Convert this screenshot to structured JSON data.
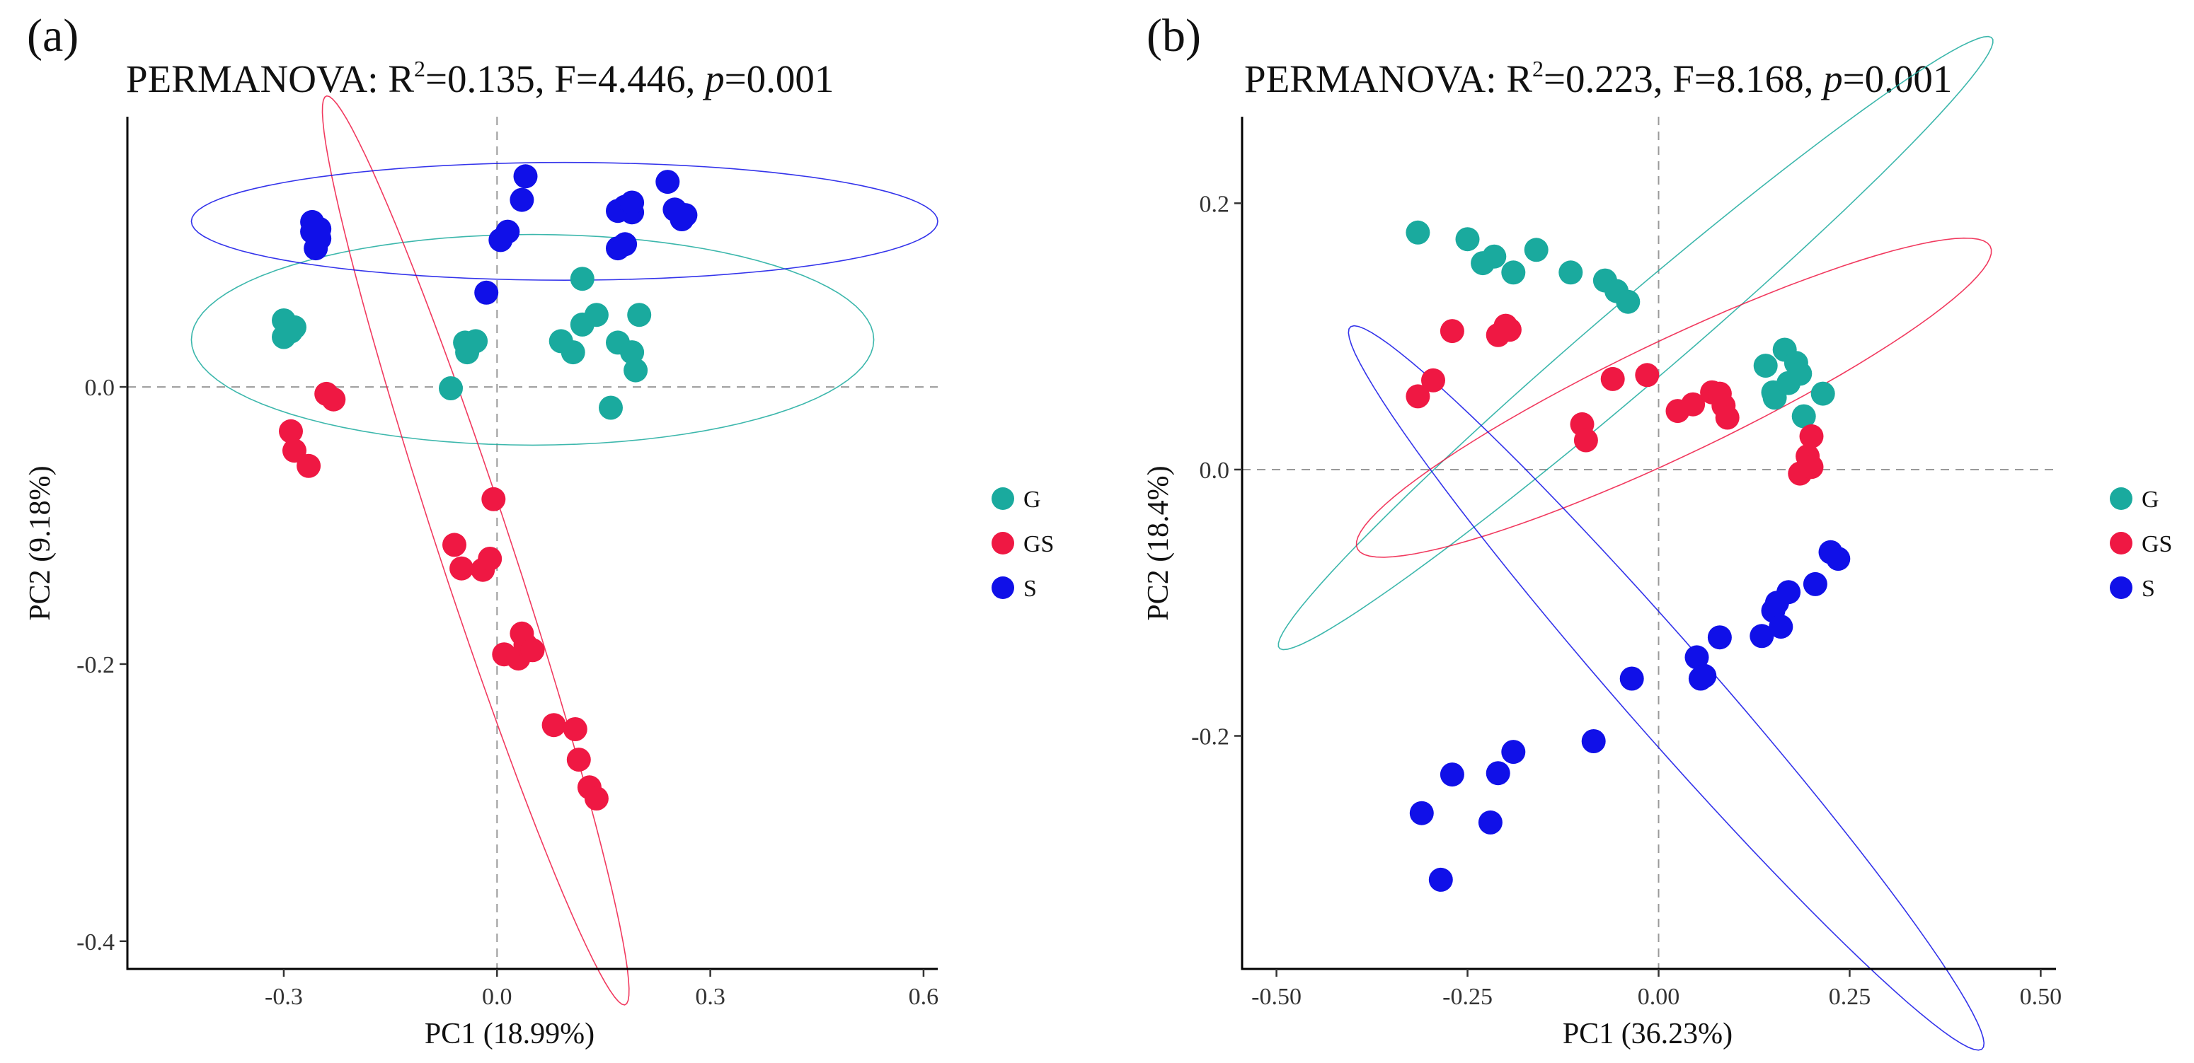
{
  "chart_data": [
    {
      "type": "scatter",
      "panel": "(a)",
      "title": {
        "prefix": "PERMANOVA: ",
        "r_label": "R",
        "r_sup": "2",
        "r_value": "=0.135, F=4.446, ",
        "p_label": "p",
        "p_value": "=0.001"
      },
      "xlabel": "PC1 (18.99%)",
      "ylabel": "PC2 (9.18%)",
      "xlim": [
        -0.52,
        0.62
      ],
      "ylim": [
        -0.42,
        0.195
      ],
      "xticks": [
        -0.3,
        0.0,
        0.3,
        0.6
      ],
      "xtick_labels": [
        "-0.3",
        "0.0",
        "0.3",
        "0.6"
      ],
      "yticks": [
        -0.4,
        -0.2,
        0.0
      ],
      "ytick_labels": [
        "-0.4",
        "-0.2",
        "0.0"
      ],
      "legend": [
        {
          "label": "G",
          "color": "#1aaa9e"
        },
        {
          "label": "GS",
          "color": "#ef1843"
        },
        {
          "label": "S",
          "color": "#1010e8"
        }
      ],
      "series": [
        {
          "name": "G",
          "color": "#1aaa9e",
          "points": [
            [
              -0.3,
              0.048
            ],
            [
              -0.3,
              0.036
            ],
            [
              -0.29,
              0.04
            ],
            [
              -0.285,
              0.043
            ],
            [
              -0.065,
              -0.001
            ],
            [
              -0.045,
              0.032
            ],
            [
              -0.042,
              0.025
            ],
            [
              -0.04,
              0.031
            ],
            [
              -0.03,
              0.033
            ],
            [
              0.09,
              0.033
            ],
            [
              0.107,
              0.025
            ],
            [
              0.12,
              0.078
            ],
            [
              0.12,
              0.045
            ],
            [
              0.14,
              0.052
            ],
            [
              0.16,
              -0.015
            ],
            [
              0.17,
              0.032
            ],
            [
              0.19,
              0.025
            ],
            [
              0.195,
              0.012
            ],
            [
              0.2,
              0.052
            ]
          ],
          "ellipse": {
            "cx": 0.05,
            "cy": 0.034,
            "rx": 0.48,
            "ry": 0.076,
            "angle_deg": 0
          }
        },
        {
          "name": "GS",
          "color": "#ef1843",
          "points": [
            [
              -0.24,
              -0.005
            ],
            [
              -0.23,
              -0.009
            ],
            [
              -0.29,
              -0.032
            ],
            [
              -0.285,
              -0.046
            ],
            [
              -0.265,
              -0.057
            ],
            [
              -0.005,
              -0.081
            ],
            [
              -0.06,
              -0.114
            ],
            [
              -0.05,
              -0.131
            ],
            [
              -0.02,
              -0.132
            ],
            [
              -0.01,
              -0.124
            ],
            [
              0.01,
              -0.193
            ],
            [
              0.03,
              -0.196
            ],
            [
              0.04,
              -0.186
            ],
            [
              0.035,
              -0.178
            ],
            [
              0.05,
              -0.19
            ],
            [
              0.08,
              -0.244
            ],
            [
              0.11,
              -0.247
            ],
            [
              0.115,
              -0.269
            ],
            [
              0.13,
              -0.289
            ],
            [
              0.14,
              -0.297
            ]
          ],
          "ellipse": {
            "cx": -0.03,
            "cy": -0.118,
            "rx": 0.39,
            "ry": 0.045,
            "angle_deg": -57
          }
        },
        {
          "name": "S",
          "color": "#1010e8",
          "points": [
            [
              -0.26,
              0.119
            ],
            [
              -0.26,
              0.112
            ],
            [
              -0.25,
              0.114
            ],
            [
              -0.255,
              0.1
            ],
            [
              -0.25,
              0.107
            ],
            [
              -0.015,
              0.068
            ],
            [
              0.005,
              0.106
            ],
            [
              0.015,
              0.112
            ],
            [
              0.035,
              0.135
            ],
            [
              0.04,
              0.152
            ],
            [
              0.17,
              0.1
            ],
            [
              0.18,
              0.103
            ],
            [
              0.17,
              0.127
            ],
            [
              0.18,
              0.13
            ],
            [
              0.19,
              0.126
            ],
            [
              0.19,
              0.133
            ],
            [
              0.24,
              0.148
            ],
            [
              0.25,
              0.128
            ],
            [
              0.26,
              0.121
            ],
            [
              0.265,
              0.124
            ]
          ],
          "ellipse": {
            "cx": 0.095,
            "cy": 0.1195,
            "rx": 0.525,
            "ry": 0.0425,
            "angle_deg": 0
          }
        }
      ]
    },
    {
      "type": "scatter",
      "panel": "(b)",
      "title": {
        "prefix": "PERMANOVA: ",
        "r_label": "R",
        "r_sup": "2",
        "r_value": "=0.223, F=8.168, ",
        "p_label": "p",
        "p_value": "=0.001"
      },
      "xlabel": "PC1 (36.23%)",
      "ylabel": "PC2 (18.4%)",
      "xlim": [
        -0.545,
        0.52
      ],
      "ylim": [
        -0.375,
        0.265
      ],
      "xticks": [
        -0.5,
        -0.25,
        0.0,
        0.25,
        0.5
      ],
      "xtick_labels": [
        "-0.50",
        "-0.25",
        "0.00",
        "0.25",
        "0.50"
      ],
      "yticks": [
        -0.2,
        0.0,
        0.2
      ],
      "ytick_labels": [
        "-0.2",
        "0.0",
        "0.2"
      ],
      "legend": [
        {
          "label": "G",
          "color": "#1aaa9e"
        },
        {
          "label": "GS",
          "color": "#ef1843"
        },
        {
          "label": "S",
          "color": "#1010e8"
        }
      ],
      "series": [
        {
          "name": "G",
          "color": "#1aaa9e",
          "points": [
            [
              -0.315,
              0.178
            ],
            [
              -0.25,
              0.173
            ],
            [
              -0.23,
              0.155
            ],
            [
              -0.215,
              0.16
            ],
            [
              -0.19,
              0.148
            ],
            [
              -0.16,
              0.165
            ],
            [
              -0.115,
              0.148
            ],
            [
              -0.07,
              0.142
            ],
            [
              -0.055,
              0.134
            ],
            [
              -0.04,
              0.126
            ],
            [
              0.14,
              0.078
            ],
            [
              0.15,
              0.058
            ],
            [
              0.152,
              0.054
            ],
            [
              0.165,
              0.09
            ],
            [
              0.17,
              0.065
            ],
            [
              0.18,
              0.08
            ],
            [
              0.185,
              0.072
            ],
            [
              0.19,
              0.04
            ],
            [
              0.215,
              0.057
            ]
          ],
          "ellipse": {
            "cx": -0.03,
            "cy": 0.095,
            "rx": 0.52,
            "ry": 0.036,
            "angle_deg": 26
          }
        },
        {
          "name": "GS",
          "color": "#ef1843",
          "points": [
            [
              -0.315,
              0.055
            ],
            [
              -0.295,
              0.067
            ],
            [
              -0.27,
              0.104
            ],
            [
              -0.21,
              0.101
            ],
            [
              -0.2,
              0.108
            ],
            [
              -0.195,
              0.105
            ],
            [
              -0.1,
              0.034
            ],
            [
              -0.095,
              0.022
            ],
            [
              -0.06,
              0.068
            ],
            [
              -0.015,
              0.071
            ],
            [
              0.025,
              0.044
            ],
            [
              0.045,
              0.049
            ],
            [
              0.07,
              0.058
            ],
            [
              0.08,
              0.057
            ],
            [
              0.085,
              0.048
            ],
            [
              0.09,
              0.039
            ],
            [
              0.185,
              -0.003
            ],
            [
              0.195,
              0.01
            ],
            [
              0.2,
              0.025
            ],
            [
              0.2,
              0.002
            ]
          ],
          "ellipse": {
            "cx": 0.02,
            "cy": 0.054,
            "rx": 0.43,
            "ry": 0.046,
            "angle_deg": 15
          }
        },
        {
          "name": "S",
          "color": "#1010e8",
          "points": [
            [
              -0.31,
              -0.258
            ],
            [
              -0.285,
              -0.308
            ],
            [
              -0.27,
              -0.229
            ],
            [
              -0.22,
              -0.265
            ],
            [
              -0.21,
              -0.228
            ],
            [
              -0.19,
              -0.212
            ],
            [
              -0.085,
              -0.204
            ],
            [
              -0.035,
              -0.157
            ],
            [
              0.05,
              -0.141
            ],
            [
              0.055,
              -0.157
            ],
            [
              0.06,
              -0.155
            ],
            [
              0.08,
              -0.126
            ],
            [
              0.135,
              -0.125
            ],
            [
              0.15,
              -0.106
            ],
            [
              0.155,
              -0.1
            ],
            [
              0.16,
              -0.118
            ],
            [
              0.17,
              -0.092
            ],
            [
              0.205,
              -0.086
            ],
            [
              0.225,
              -0.062
            ],
            [
              0.235,
              -0.067
            ]
          ],
          "ellipse": {
            "cx": 0.01,
            "cy": -0.164,
            "rx": 0.495,
            "ry": 0.043,
            "angle_deg": -33
          }
        }
      ]
    }
  ]
}
